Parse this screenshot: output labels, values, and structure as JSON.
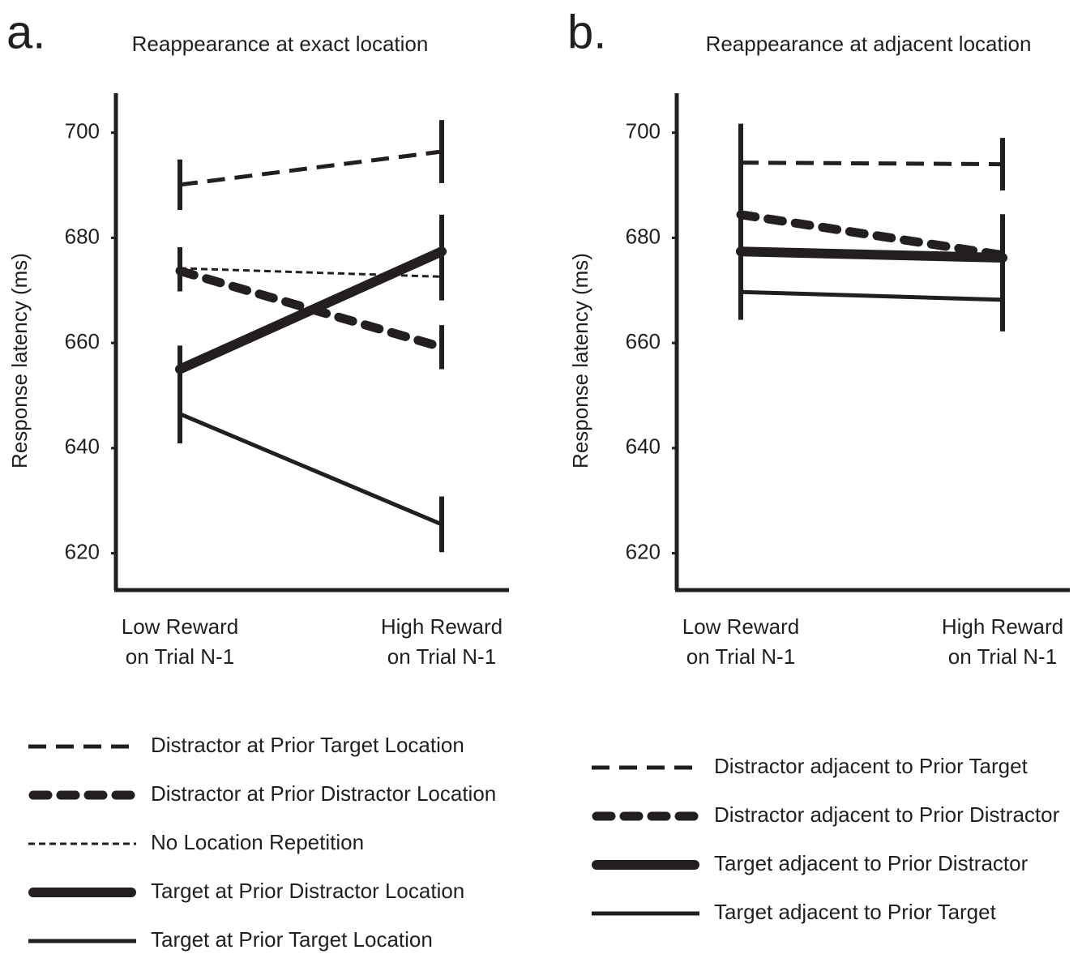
{
  "chart_data": [
    {
      "type": "line",
      "label": "a.",
      "title": "Reappearance at exact location",
      "y_label": "Response latency (ms)",
      "categories": [
        "Low Reward\non Trial N-1",
        "High Reward\non Trial N-1"
      ],
      "ylim": [
        613,
        707.5
      ],
      "yticks": [
        620,
        640,
        660,
        680,
        700
      ],
      "series": [
        {
          "name": "Distractor at Prior Target Location",
          "color": "#231f20",
          "style": "dashed",
          "values": [
            690.1,
            696.4
          ],
          "errors": [
            4.8,
            6
          ]
        },
        {
          "name": "Distractor at Prior Distractor Location",
          "color": "#231f20",
          "style": "heavy-dashed",
          "values": [
            673.7,
            659.2
          ],
          "errors": [
            3.9,
            4.2
          ]
        },
        {
          "name": "No Location Repetition",
          "color": "#231f20",
          "style": "fine-dashed",
          "values": [
            674.2,
            672.6
          ],
          "errors": [
            4,
            4.5
          ]
        },
        {
          "name": "Target at Prior Distractor Location",
          "color": "#231f20",
          "style": "heavy",
          "values": [
            655.0,
            677.4
          ],
          "errors": [
            4.5,
            7
          ]
        },
        {
          "name": "Target at Prior Target Location",
          "color": "#231f20",
          "style": "solid",
          "values": [
            646.5,
            625.5
          ],
          "errors": [
            5.6,
            5.3
          ]
        }
      ]
    },
    {
      "type": "line",
      "label": "b.",
      "title": "Reappearance at adjacent location",
      "y_label": "Response latency (ms)",
      "categories": [
        "Low Reward\non Trial N-1",
        "High Reward\non Trial N-1"
      ],
      "ylim": [
        613,
        707.5
      ],
      "yticks": [
        620,
        640,
        660,
        680,
        700
      ],
      "series": [
        {
          "name": "Distractor adjacent to Prior Target",
          "color": "#231f20",
          "style": "dashed",
          "values": [
            694.3,
            694.0
          ],
          "errors": [
            7.4,
            5
          ]
        },
        {
          "name": "Distractor adjacent to Prior Distractor",
          "color": "#231f20",
          "style": "heavy-dashed",
          "values": [
            684.4,
            676.7
          ],
          "errors": [
            7,
            5.7
          ]
        },
        {
          "name": "Target adjacent to Prior Distractor",
          "color": "#231f20",
          "style": "heavy",
          "values": [
            677.4,
            676.2
          ],
          "errors": [
            6.5,
            8.3
          ]
        },
        {
          "name": "Target adjacent to Prior Target",
          "color": "#231f20",
          "style": "solid",
          "values": [
            669.7,
            668.2
          ],
          "errors": [
            5.3,
            6
          ]
        }
      ]
    }
  ]
}
